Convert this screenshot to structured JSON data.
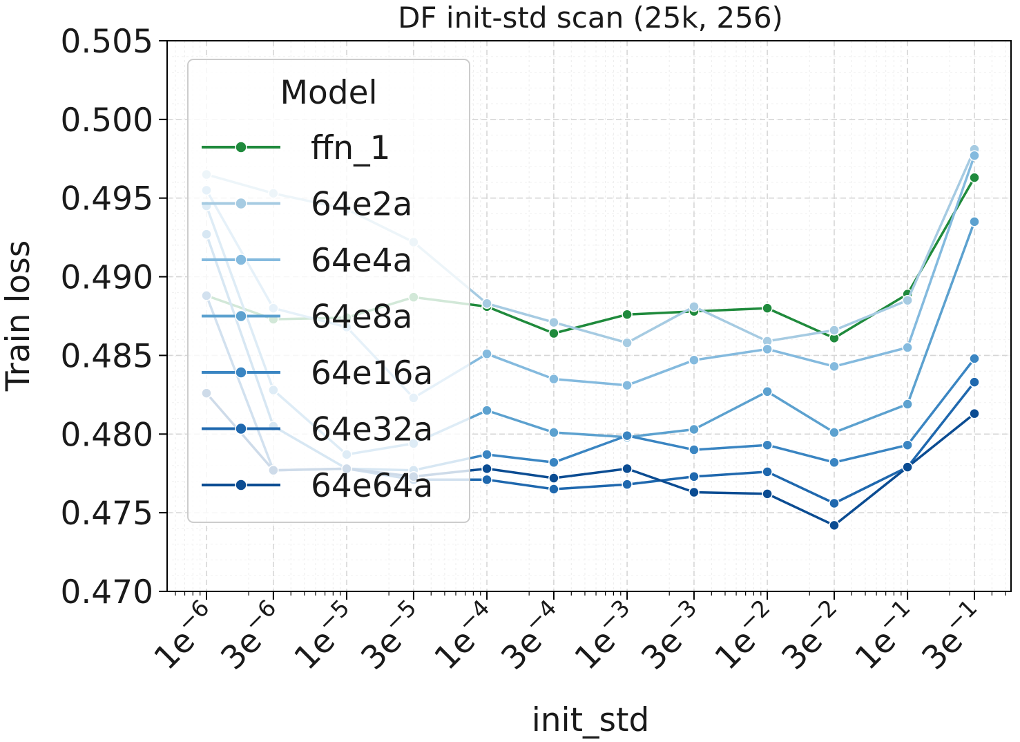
{
  "chart_data": {
    "type": "line",
    "title": "DF init-std scan (25k, 256)",
    "xlabel": "init_std",
    "ylabel": "Train loss",
    "xscale": "log",
    "ylim": [
      0.47,
      0.505
    ],
    "yticks": [
      "0.470",
      "0.475",
      "0.480",
      "0.485",
      "0.490",
      "0.495",
      "0.500",
      "0.505"
    ],
    "x": [
      1e-06,
      3e-06,
      1e-05,
      3e-05,
      0.0001,
      0.0003,
      0.001,
      0.003,
      0.01,
      0.03,
      0.1,
      0.3
    ],
    "xtick_labels": [
      {
        "mant": "1e",
        "exp": "−6"
      },
      {
        "mant": "3e",
        "exp": "−6"
      },
      {
        "mant": "1e",
        "exp": "−5"
      },
      {
        "mant": "3e",
        "exp": "−5"
      },
      {
        "mant": "1e",
        "exp": "−4"
      },
      {
        "mant": "3e",
        "exp": "−4"
      },
      {
        "mant": "1e",
        "exp": "−3"
      },
      {
        "mant": "3e",
        "exp": "−3"
      },
      {
        "mant": "1e",
        "exp": "−2"
      },
      {
        "mant": "3e",
        "exp": "−2"
      },
      {
        "mant": "1e",
        "exp": "−1"
      },
      {
        "mant": "3e",
        "exp": "−1"
      }
    ],
    "grid": true,
    "legend": {
      "title": "Model",
      "position": "upper-left"
    },
    "series": [
      {
        "name": "ffn_1",
        "color": "#1f8a3c",
        "values": [
          0.4888,
          0.4873,
          0.4874,
          0.4887,
          0.4881,
          0.4864,
          0.4876,
          0.4878,
          0.488,
          0.4861,
          0.4889,
          0.4963
        ]
      },
      {
        "name": "64e2a",
        "color": "#a6cbe2",
        "values": [
          0.4965,
          0.4953,
          0.4943,
          0.4922,
          0.4883,
          0.4871,
          0.4858,
          0.4881,
          0.4859,
          0.4866,
          0.4885,
          0.4981
        ]
      },
      {
        "name": "64e4a",
        "color": "#84bade",
        "values": [
          0.4955,
          0.488,
          0.4868,
          0.4823,
          0.4851,
          0.4835,
          0.4831,
          0.4847,
          0.4854,
          0.4843,
          0.4855,
          0.4977
        ]
      },
      {
        "name": "64e8a",
        "color": "#5ca1cf",
        "values": [
          0.4945,
          0.4828,
          0.4787,
          0.4794,
          0.4815,
          0.4801,
          0.4798,
          0.4803,
          0.4827,
          0.4801,
          0.4819,
          0.4935
        ]
      },
      {
        "name": "64e16a",
        "color": "#3a85c2",
        "values": [
          0.4927,
          0.4805,
          0.4778,
          0.4777,
          0.4787,
          0.4782,
          0.4799,
          0.479,
          0.4793,
          0.4782,
          0.4793,
          0.4848
        ]
      },
      {
        "name": "64e32a",
        "color": "#1f68ae",
        "values": [
          0.4888,
          0.4777,
          0.4778,
          0.4771,
          0.4771,
          0.4765,
          0.4768,
          0.4773,
          0.4776,
          0.4756,
          0.4779,
          0.4833
        ]
      },
      {
        "name": "64e64a",
        "color": "#0b4c92",
        "values": [
          0.4826,
          0.4777,
          0.4778,
          0.4773,
          0.4778,
          0.4772,
          0.4778,
          0.4763,
          0.4762,
          0.4742,
          0.4779,
          0.4813
        ]
      }
    ]
  }
}
